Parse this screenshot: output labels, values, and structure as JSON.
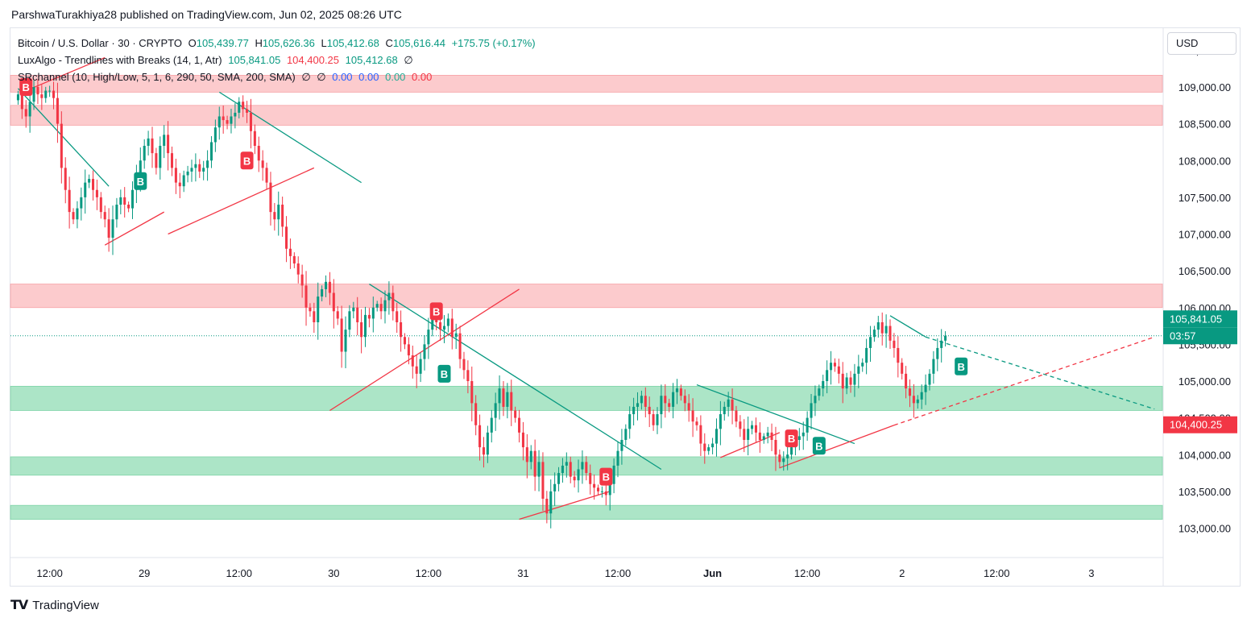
{
  "publisher_line": "ParshwaTurakhiya28 published on TradingView.com, Jun 02, 2025 08:26 UTC",
  "legend": {
    "symbol": "Bitcoin / U.S. Dollar · 30 · CRYPTO",
    "o_label": "O",
    "o": "105,439.77",
    "h_label": "H",
    "h": "105,626.36",
    "l_label": "L",
    "l": "105,412.68",
    "c_label": "C",
    "c": "105,616.44",
    "change": "+175.75 (+0.17%)",
    "indicator1_name": "LuxAlgo - Trendlines with Breaks (14, 1, Atr)",
    "indicator1_v1": "105,841.05",
    "indicator1_v2": "104,400.25",
    "indicator1_v3": "105,412.68",
    "indicator1_v4": "∅",
    "indicator2_name": "SRchannel (10, High/Low, 5, 1, 6, 290, 50, SMA, 200, SMA)",
    "indicator2_v1": "∅",
    "indicator2_v2": "∅",
    "indicator2_v3": "0.00",
    "indicator2_v4": "0.00",
    "indicator2_v5": "0.00",
    "indicator2_v6": "0.00"
  },
  "currency_button": "USD",
  "brand": {
    "logo": "𝗧𝗩",
    "name": "TradingView"
  },
  "colors": {
    "up": "#089981",
    "down": "#f23645",
    "res_zone": "#fccbcd",
    "sup_zone": "#ace5c7",
    "trend_up": "#f23645",
    "trend_down": "#089981"
  },
  "chart_data": {
    "type": "candlestick",
    "symbol": "BTCUSD",
    "interval": "30",
    "ylim": [
      102600,
      109800
    ],
    "y_ticks": [
      103000,
      103500,
      104000,
      104500,
      105000,
      105500,
      106000,
      106500,
      107000,
      107500,
      108000,
      108500,
      109000,
      109500
    ],
    "y_tick_labels": [
      "103,000.00",
      "103,500.00",
      "104,000.00",
      "104,500.00",
      "105,000.00",
      "105,500.00",
      "106,000.00",
      "106,500.00",
      "107,000.00",
      "107,500.00",
      "108,000.00",
      "108,500.00",
      "109,000.00",
      "109,500.00"
    ],
    "x_labels": [
      {
        "label": "12:00",
        "bar": 8
      },
      {
        "label": "29",
        "bar": 32
      },
      {
        "label": "12:00",
        "bar": 56
      },
      {
        "label": "30",
        "bar": 80
      },
      {
        "label": "12:00",
        "bar": 104
      },
      {
        "label": "31",
        "bar": 128
      },
      {
        "label": "12:00",
        "bar": 152
      },
      {
        "label": "Jun",
        "bar": 176
      },
      {
        "label": "12:00",
        "bar": 200
      },
      {
        "label": "2",
        "bar": 224
      },
      {
        "label": "12:00",
        "bar": 248
      },
      {
        "label": "3",
        "bar": 272
      }
    ],
    "x_range_bars": [
      -0.5,
      290
    ],
    "price_tags": [
      {
        "value": 105841.05,
        "label": "105,841.05",
        "color": "#089981",
        "y": 105841.05
      },
      {
        "value": "03:57",
        "label": "03:57",
        "color": "#089981",
        "y": 105616
      },
      {
        "value": 104400.25,
        "label": "104,400.25",
        "color": "#f23645",
        "y": 104400.25
      }
    ],
    "last_price": 105616.44,
    "resistance_zones": [
      [
        108930,
        109160
      ],
      [
        108480,
        108750
      ],
      [
        106000,
        106320
      ]
    ],
    "support_zones": [
      [
        104600,
        104930
      ],
      [
        103720,
        103970
      ],
      [
        103120,
        103310
      ]
    ],
    "closes": [
      108900,
      108700,
      108600,
      108800,
      109000,
      108900,
      108850,
      108950,
      108950,
      108850,
      108500,
      107900,
      107600,
      107300,
      107200,
      107350,
      107500,
      107700,
      107750,
      107600,
      107500,
      107300,
      107200,
      106950,
      107200,
      107400,
      107500,
      107400,
      107350,
      107600,
      107800,
      108000,
      108200,
      108300,
      108100,
      107900,
      108200,
      108350,
      108100,
      107900,
      107700,
      107650,
      107800,
      107850,
      107900,
      107950,
      107850,
      107900,
      108000,
      108250,
      108450,
      108600,
      108550,
      108500,
      108600,
      108650,
      108800,
      108700,
      108650,
      108400,
      108200,
      108000,
      107900,
      107700,
      107300,
      107200,
      107400,
      107100,
      106800,
      106700,
      106600,
      106450,
      106300,
      106000,
      105950,
      105800,
      106150,
      106250,
      106350,
      106200,
      105950,
      105850,
      105400,
      105700,
      105950,
      106000,
      105800,
      105600,
      105900,
      105850,
      106000,
      106050,
      105950,
      106100,
      106200,
      105950,
      105800,
      105600,
      105500,
      105350,
      105200,
      105100,
      105300,
      105500,
      105700,
      105900,
      105800,
      105700,
      105750,
      105850,
      105600,
      105650,
      105300,
      105150,
      105000,
      104700,
      104400,
      104100,
      104000,
      104300,
      104500,
      104700,
      104900,
      104650,
      104850,
      104600,
      104500,
      104300,
      104100,
      103900,
      104050,
      103700,
      103900,
      103400,
      103200,
      103500,
      103600,
      103750,
      103850,
      103900,
      103700,
      103650,
      103800,
      103900,
      103750,
      103600,
      103550,
      103500,
      103500,
      103450,
      103600,
      103850,
      104050,
      104200,
      104350,
      104550,
      104650,
      104700,
      104800,
      104650,
      104550,
      104400,
      104550,
      104800,
      104700,
      104650,
      104850,
      104900,
      104800,
      104700,
      104600,
      104450,
      104400,
      104150,
      104050,
      104100,
      104150,
      104350,
      104550,
      104650,
      104750,
      104600,
      104450,
      104350,
      104200,
      104350,
      104400,
      104300,
      104200,
      104250,
      104300,
      104200,
      104000,
      103900,
      103950,
      104000,
      104100,
      104200,
      104250,
      104300,
      104500,
      104700,
      104800,
      104900,
      105000,
      105150,
      105250,
      105200,
      105100,
      104900,
      105050,
      104950,
      105100,
      105200,
      105250,
      105450,
      105600,
      105700,
      105800,
      105650,
      105750,
      105550,
      105450,
      105250,
      105100,
      104900,
      104800,
      104700,
      104750,
      104850,
      104950,
      105100,
      105300,
      105450,
      105550,
      105616
    ]
  }
}
